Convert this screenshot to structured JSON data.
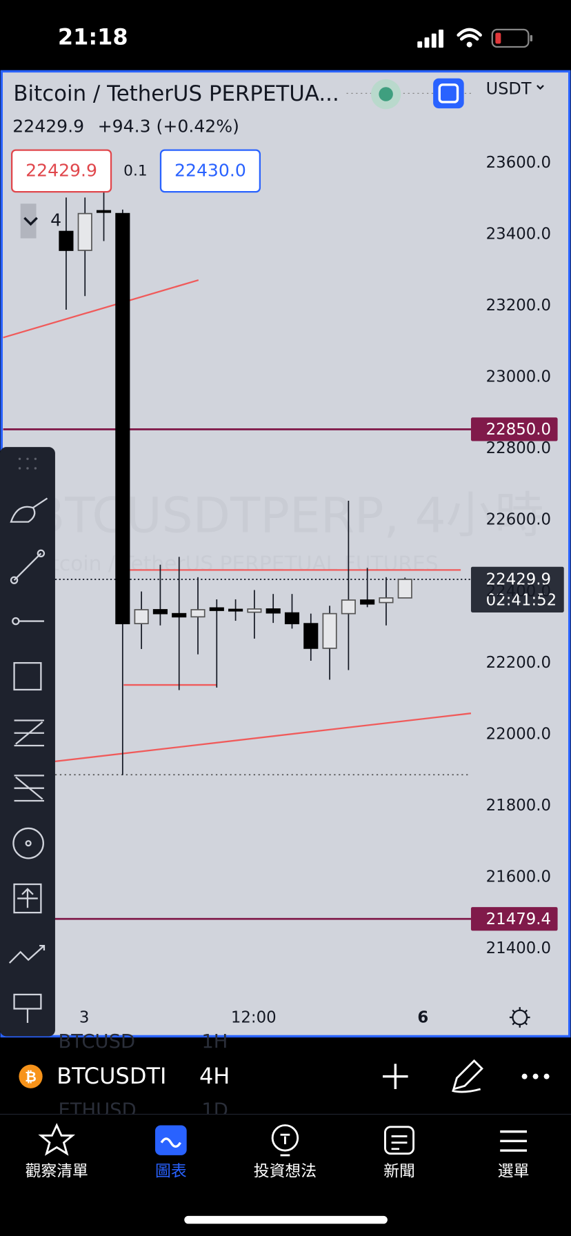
{
  "status": {
    "time": "21:18"
  },
  "header": {
    "title": "Bitcoin / TetherUS PERPETUA...",
    "price": "22429.9",
    "change": "+94.3 (+0.42%)",
    "currency": "USDT",
    "count": "4"
  },
  "quote": {
    "bid": "22429.9",
    "spread": "0.1",
    "ask": "22430.0"
  },
  "chart": {
    "ylim": [
      21250,
      23850
    ],
    "yticks": [
      {
        "value": 23600,
        "label": "23600.0"
      },
      {
        "value": 23400,
        "label": "23400.0"
      },
      {
        "value": 23200,
        "label": "23200.0"
      },
      {
        "value": 23000,
        "label": "23000.0"
      },
      {
        "value": 22800,
        "label": "22800.0"
      },
      {
        "value": 22600,
        "label": "22600.0"
      },
      {
        "value": 22400,
        "label": "22400.0"
      },
      {
        "value": 22200,
        "label": "22200.0"
      },
      {
        "value": 22000,
        "label": "22000.0"
      },
      {
        "value": 21800,
        "label": "21800.0"
      },
      {
        "value": 21600,
        "label": "21600.0"
      },
      {
        "value": 21400,
        "label": "21400.0"
      }
    ],
    "candles": [
      {
        "open": 23404,
        "high": 23499,
        "low": 23185,
        "close": 23351
      },
      {
        "open": 23351,
        "high": 23499,
        "low": 23223,
        "close": 23454
      },
      {
        "open": 23462,
        "high": 23521,
        "low": 23377,
        "close": 23458
      },
      {
        "open": 23454,
        "high": 23465,
        "low": 21882,
        "close": 22306
      },
      {
        "open": 22306,
        "high": 22396,
        "low": 22235,
        "close": 22345
      },
      {
        "open": 22345,
        "high": 22471,
        "low": 22301,
        "close": 22334
      },
      {
        "open": 22334,
        "high": 22493,
        "low": 22120,
        "close": 22325
      },
      {
        "open": 22325,
        "high": 22436,
        "low": 22220,
        "close": 22345
      },
      {
        "open": 22350,
        "high": 22374,
        "low": 22127,
        "close": 22343
      },
      {
        "open": 22346,
        "high": 22374,
        "low": 22314,
        "close": 22344
      },
      {
        "open": 22338,
        "high": 22400,
        "low": 22264,
        "close": 22347
      },
      {
        "open": 22347,
        "high": 22389,
        "low": 22308,
        "close": 22336
      },
      {
        "open": 22336,
        "high": 22389,
        "low": 22292,
        "close": 22306
      },
      {
        "open": 22306,
        "high": 22334,
        "low": 22202,
        "close": 22237
      },
      {
        "open": 22237,
        "high": 22356,
        "low": 22149,
        "close": 22334
      },
      {
        "open": 22334,
        "high": 22650,
        "low": 22176,
        "close": 22372
      },
      {
        "open": 22372,
        "high": 22462,
        "low": 22352,
        "close": 22361
      },
      {
        "open": 22365,
        "high": 22436,
        "low": 22301,
        "close": 22378
      },
      {
        "open": 22378,
        "high": 22435,
        "low": 22378,
        "close": 22429.9
      }
    ],
    "levels": [
      {
        "value": 22850,
        "label": "22850.0"
      },
      {
        "value": 21479.4,
        "label": "21479.4"
      }
    ],
    "last": {
      "value": 22429.9,
      "label": "22429.9",
      "countdown": "02:41:52"
    },
    "xlabels": [
      "3",
      "12:00",
      "6"
    ],
    "watermark": "BTCUSDTPERP, 4小時",
    "watermark_sub": "Bitcoin / TetherUS PERPETUAL FUTURES"
  },
  "toolbar": {
    "symbol": "BTCUSDTI",
    "interval": "4H",
    "ghost": [
      "BTCUSD",
      "1H",
      "ETHUSD",
      "1D"
    ]
  },
  "nav": [
    "觀察清單",
    "圖表",
    "投資想法",
    "新聞",
    "選單"
  ]
}
